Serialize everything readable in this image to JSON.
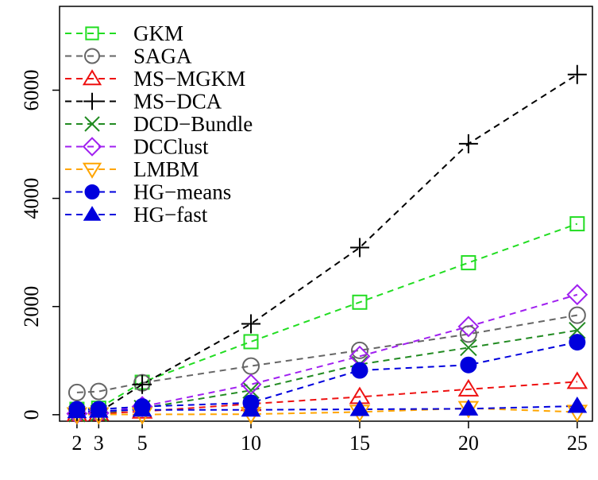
{
  "chart_data": {
    "type": "line",
    "title": "",
    "xlabel": "",
    "ylabel": "",
    "x": [
      2,
      3,
      5,
      10,
      15,
      20,
      25
    ],
    "x_ticks": [
      "2",
      "3",
      "5",
      "10",
      "15",
      "20",
      "25"
    ],
    "y_ticks": [
      "0",
      "2000",
      "4000",
      "6000"
    ],
    "y_tick_values": [
      0,
      2000,
      4000,
      6000
    ],
    "xlim": [
      1.2,
      25.7
    ],
    "ylim": [
      -120,
      7550
    ],
    "grid": false,
    "legend_position": "top-left",
    "series": [
      {
        "name": "GKM",
        "color": "#22dd22",
        "marker": "square-open",
        "values": [
          100,
          120,
          600,
          1350,
          2080,
          2810,
          3530
        ]
      },
      {
        "name": "SAGA",
        "color": "#666666",
        "marker": "circle-open",
        "values": [
          410,
          430,
          590,
          900,
          1190,
          1490,
          1840
        ]
      },
      {
        "name": "MS−MGKM",
        "color": "#ee1111",
        "marker": "triangle-up-open",
        "values": [
          10,
          20,
          60,
          200,
          330,
          470,
          610
        ]
      },
      {
        "name": "MS−DCA",
        "color": "#000000",
        "marker": "plus",
        "values": [
          20,
          40,
          560,
          1680,
          3090,
          5010,
          6290
        ]
      },
      {
        "name": "DCD−Bundle",
        "color": "#228b22",
        "marker": "x",
        "values": [
          15,
          25,
          120,
          450,
          930,
          1240,
          1560
        ]
      },
      {
        "name": "DCClust",
        "color": "#a020f0",
        "marker": "diamond-open",
        "values": [
          20,
          30,
          150,
          560,
          1080,
          1630,
          2220
        ]
      },
      {
        "name": "LMBM",
        "color": "#ffa500",
        "marker": "triangle-down-open",
        "values": [
          5,
          5,
          5,
          10,
          50,
          120,
          50
        ]
      },
      {
        "name": "HG−means",
        "color": "#0000dd",
        "marker": "circle-filled",
        "values": [
          100,
          100,
          150,
          220,
          820,
          920,
          1340
        ]
      },
      {
        "name": "HG−fast",
        "color": "#0000dd",
        "marker": "triangle-up-filled",
        "values": [
          60,
          70,
          90,
          90,
          100,
          110,
          160
        ]
      }
    ]
  }
}
